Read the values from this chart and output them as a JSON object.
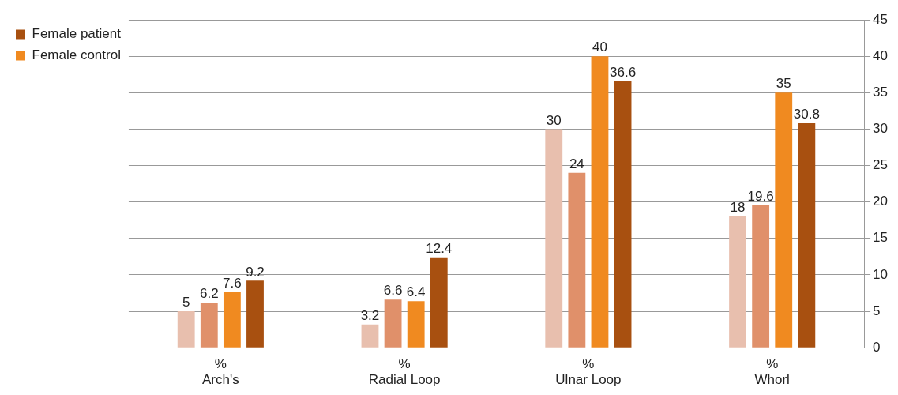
{
  "chart_data": {
    "type": "bar",
    "categories": [
      "Arch's",
      "Radial Loop",
      "Ulnar Loop",
      "Whorl"
    ],
    "series": [
      {
        "color": "#e8bfae",
        "values": [
          5,
          3.2,
          30,
          18
        ]
      },
      {
        "color": "#e0906a",
        "values": [
          6.2,
          6.6,
          24,
          19.6
        ]
      },
      {
        "name": "Female control",
        "color": "#f08a20",
        "values": [
          7.6,
          6.4,
          40,
          35
        ]
      },
      {
        "name": "Female patient",
        "color": "#a85010",
        "values": [
          9.2,
          12.4,
          36.6,
          30.8
        ]
      }
    ],
    "ylim": [
      0,
      45
    ],
    "yticks": [
      0,
      5,
      10,
      15,
      20,
      25,
      30,
      35,
      40,
      45
    ],
    "grid": "y",
    "legend": "left",
    "data_labels": true,
    "annotations": [
      "%",
      "%",
      "%",
      "%"
    ]
  }
}
